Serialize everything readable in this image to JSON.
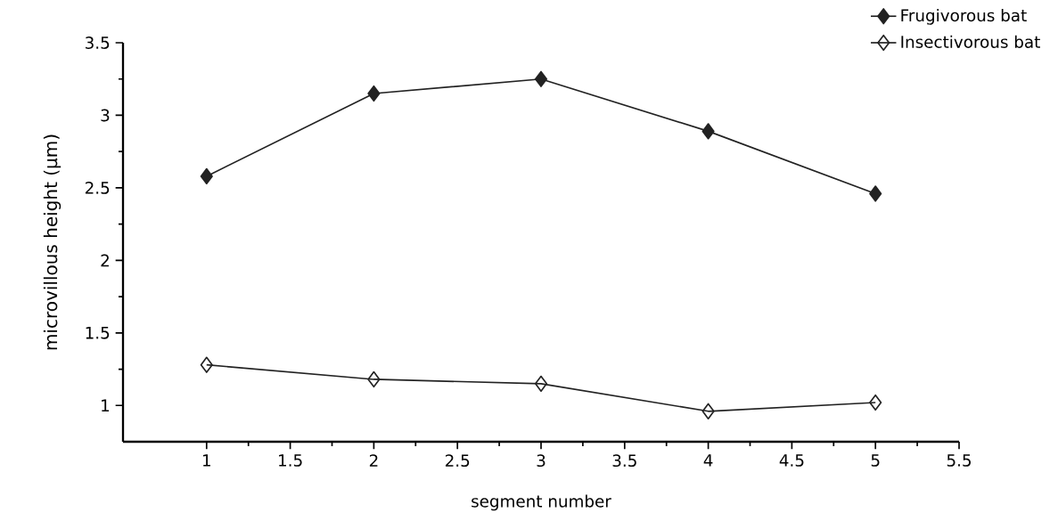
{
  "chart_data": {
    "type": "line",
    "xlabel": "segment number",
    "ylabel": "microvillous height (µm)",
    "x": [
      1,
      2,
      3,
      4,
      5
    ],
    "series": [
      {
        "name": "Frugivorous bat",
        "color": "#222222",
        "marker": "diamond",
        "values": [
          2.58,
          3.15,
          3.25,
          2.89,
          2.46
        ]
      },
      {
        "name": "Insectivorous bat",
        "color": "#222222",
        "marker": "diamond_open",
        "values": [
          1.28,
          1.18,
          1.15,
          0.96,
          1.02
        ]
      }
    ],
    "xlim": [
      0.5,
      5.5
    ],
    "xticks": [
      1,
      1.5,
      2,
      2.5,
      3,
      3.5,
      4,
      4.5,
      5,
      5.5
    ],
    "ylim": [
      0.75,
      3.5
    ],
    "yticks": [
      1,
      1.5,
      2,
      2.5,
      3,
      3.5
    ],
    "legend": "top right",
    "grid": false,
    "line_style": "solid"
  }
}
